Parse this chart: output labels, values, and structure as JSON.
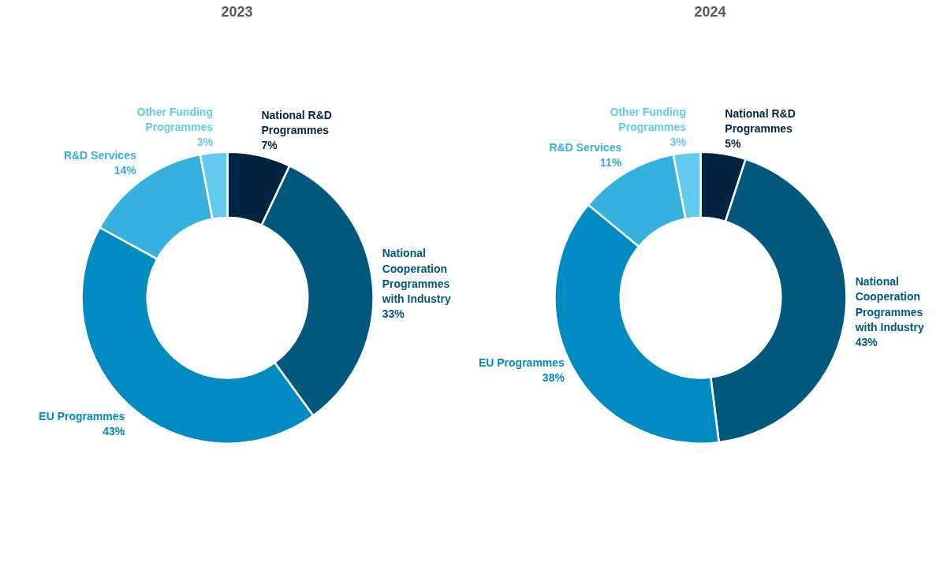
{
  "chart_data": [
    {
      "type": "donut",
      "title": "2023",
      "categories": [
        "National R&D Programmes",
        "National Cooperation Programmes with Industry",
        "EU Programmes",
        "R&D Services",
        "Other Funding Programmes"
      ],
      "values": [
        7,
        33,
        43,
        14,
        3
      ],
      "value_labels": [
        "7%",
        "33%",
        "43%",
        "14%",
        "3%"
      ],
      "colors": [
        "#002441",
        "#00587f",
        "#008bc0",
        "#36b0dd",
        "#62cbed"
      ]
    },
    {
      "type": "donut",
      "title": "2024",
      "categories": [
        "National R&D Programmes",
        "National Cooperation Programmes with Industry",
        "EU Programmes",
        "R&D Services",
        "Other Funding Programmes"
      ],
      "values": [
        5,
        43,
        38,
        11,
        3
      ],
      "value_labels": [
        "5%",
        "43%",
        "38%",
        "11%",
        "3%"
      ],
      "colors": [
        "#002441",
        "#00587f",
        "#008bc0",
        "#36b0dd",
        "#62cbed"
      ]
    }
  ]
}
